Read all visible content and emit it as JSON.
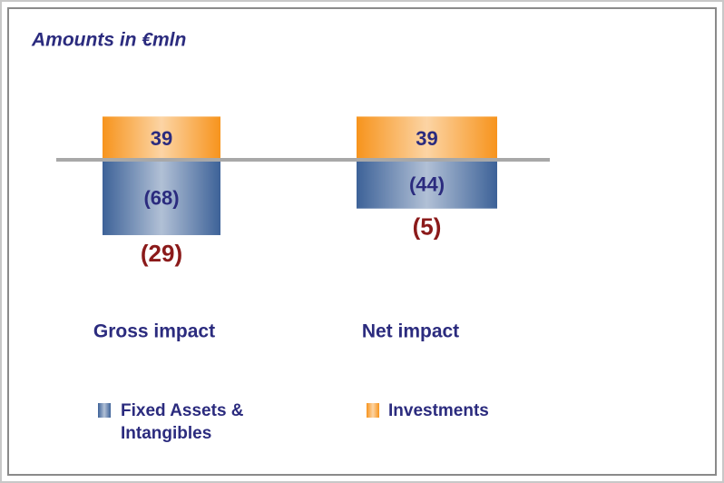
{
  "chart_data": {
    "type": "stacked_bar",
    "title": "Amounts in €mln",
    "categories": [
      "Gross impact",
      "Net impact"
    ],
    "series": [
      {
        "name": "Fixed Assets & Intangibles",
        "color": "#3d6298",
        "values": [
          -68,
          -44
        ],
        "value_labels": [
          "(68)",
          "(44)"
        ]
      },
      {
        "name": "Investments",
        "color": "#f7941d",
        "values": [
          39,
          39
        ]
      }
    ],
    "totals": [
      -29,
      -5
    ],
    "total_labels": [
      "(29)",
      "(5)"
    ]
  }
}
